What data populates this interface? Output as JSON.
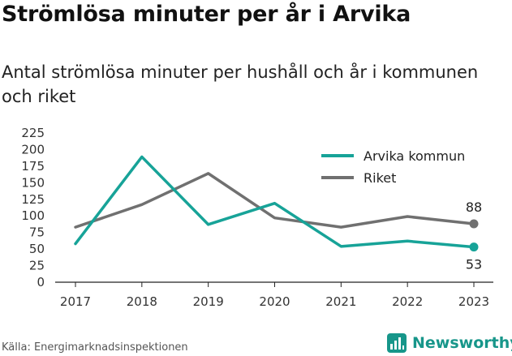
{
  "header": {
    "title": "Strömlösa minuter per år i Arvika",
    "subtitle": "Antal strömlösa minuter per hushåll och år i kommunen och riket"
  },
  "footer": {
    "source": "Källa: Energimarknadsinspektionen",
    "brand": "Newsworthy",
    "brand_icon": "newsworthy-logo-icon",
    "brand_color": "#17968a"
  },
  "chart_data": {
    "type": "line",
    "x": [
      "2017",
      "2018",
      "2019",
      "2020",
      "2021",
      "2022",
      "2023"
    ],
    "ylim": [
      0,
      225
    ],
    "yticks": [
      0,
      25,
      50,
      75,
      100,
      125,
      150,
      175,
      200,
      225
    ],
    "grid": false,
    "legend_position": "top-right",
    "series": [
      {
        "name": "Arvika kommun",
        "color": "#17a398",
        "values": [
          58,
          189,
          87,
          119,
          54,
          62,
          53
        ],
        "end_label": "53"
      },
      {
        "name": "Riket",
        "color": "#707070",
        "values": [
          83,
          117,
          164,
          97,
          83,
          99,
          88
        ],
        "end_label": "88"
      }
    ]
  }
}
